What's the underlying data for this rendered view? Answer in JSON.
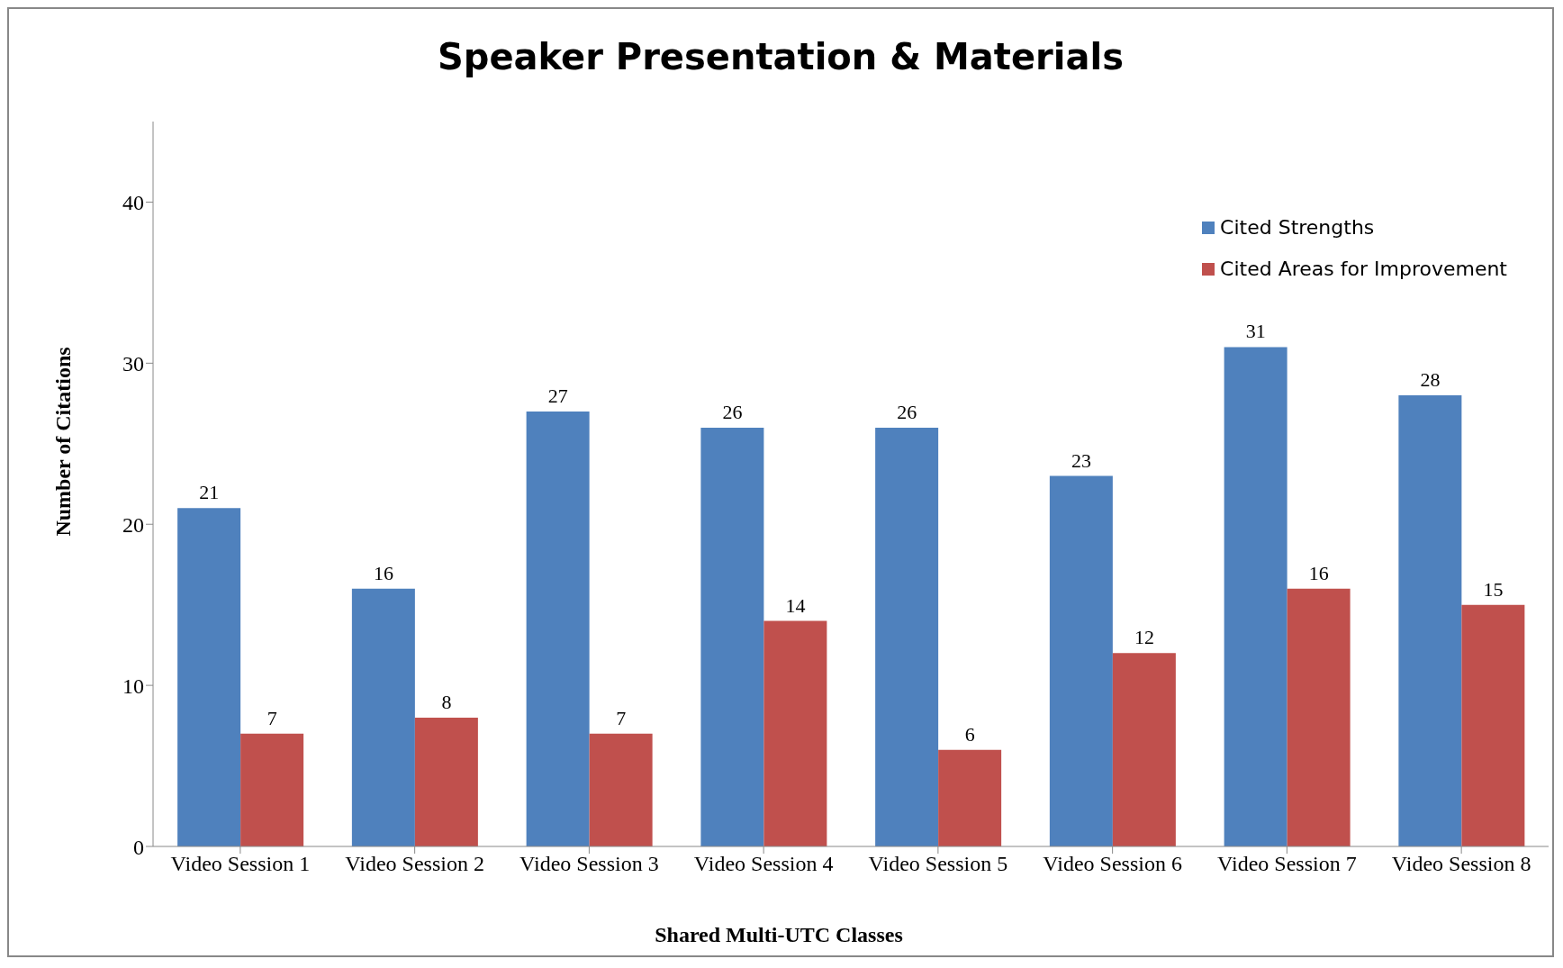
{
  "chart_data": {
    "type": "bar",
    "title": "Speaker Presentation & Materials",
    "xlabel": "Shared Multi-UTC  Classes",
    "ylabel": "Number of Citations",
    "categories": [
      "Video Session 1",
      "Video Session 2",
      "Video Session 3",
      "Video Session 4",
      "Video Session 5",
      "Video Session 6",
      "Video Session 7",
      "Video Session 8"
    ],
    "series": [
      {
        "name": "Cited Strengths",
        "color": "#4f81bd",
        "values": [
          21,
          16,
          27,
          26,
          26,
          23,
          31,
          28
        ]
      },
      {
        "name": "Cited Areas for Improvement",
        "color": "#c0504d",
        "values": [
          7,
          8,
          7,
          14,
          6,
          12,
          16,
          15
        ]
      }
    ],
    "ylim": [
      0,
      45
    ],
    "yticks": [
      0,
      10,
      20,
      30,
      40
    ],
    "grid": false,
    "legend": "top right",
    "data_labels": true
  }
}
